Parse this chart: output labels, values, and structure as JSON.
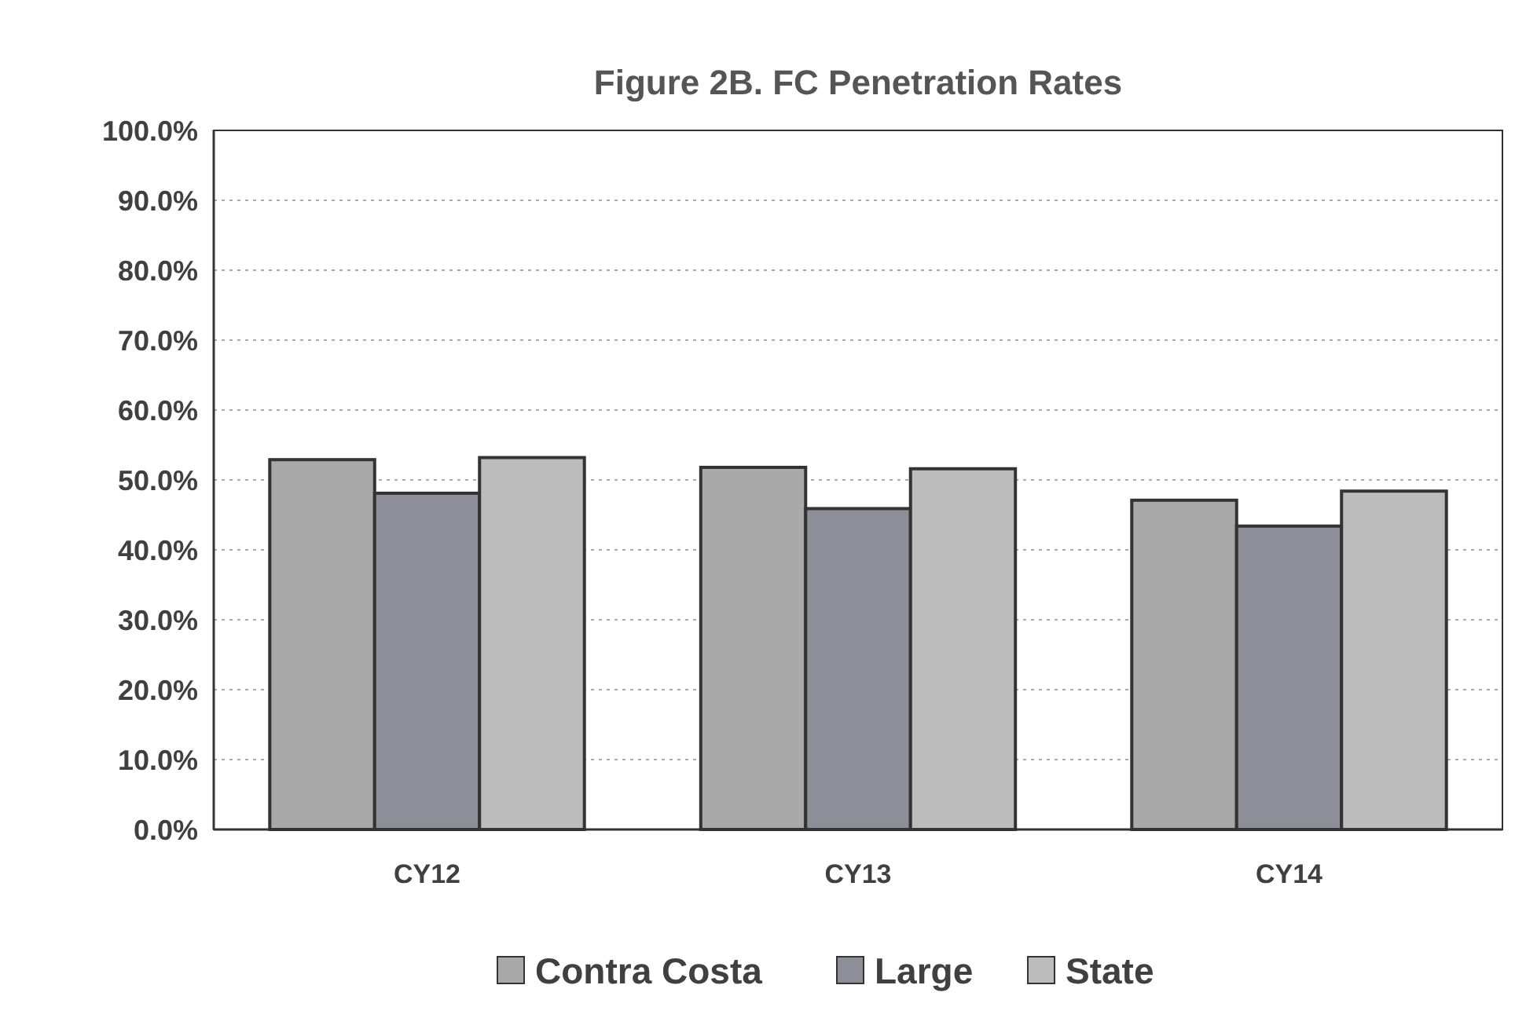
{
  "chart_data": {
    "type": "bar",
    "title": "Figure 2B. FC Penetration Rates",
    "categories": [
      "CY12",
      "CY13",
      "CY14"
    ],
    "series": [
      {
        "name": "Contra Costa",
        "color": "#a9a9a9",
        "values": [
          52.9,
          51.8,
          47.1
        ]
      },
      {
        "name": "Large",
        "color": "#8e8e98",
        "values": [
          48.1,
          45.9,
          43.4
        ]
      },
      {
        "name": "State",
        "color": "#bcbcbc",
        "values": [
          53.2,
          51.6,
          48.4
        ]
      }
    ],
    "ylim": [
      0,
      100
    ],
    "yticks": [
      {
        "value": 0,
        "label": "0.0%"
      },
      {
        "value": 10,
        "label": "10.0%"
      },
      {
        "value": 20,
        "label": "20.0%"
      },
      {
        "value": 30,
        "label": "30.0%"
      },
      {
        "value": 40,
        "label": "40.0%"
      },
      {
        "value": 50,
        "label": "50.0%"
      },
      {
        "value": 60,
        "label": "60.0%"
      },
      {
        "value": 70,
        "label": "70.0%"
      },
      {
        "value": 80,
        "label": "80.0%"
      },
      {
        "value": 90,
        "label": "90.0%"
      },
      {
        "value": 100,
        "label": "100.0%"
      }
    ],
    "grid": "y",
    "legend": "bottom"
  }
}
